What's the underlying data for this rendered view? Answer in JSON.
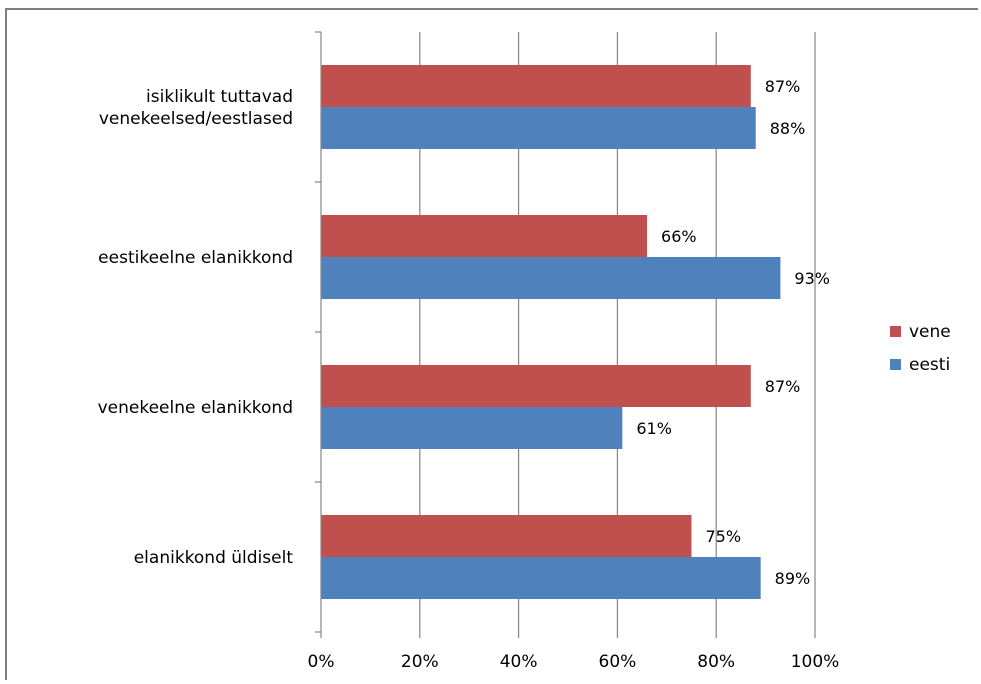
{
  "chart_data": {
    "type": "bar",
    "orientation": "horizontal",
    "categories": [
      [
        "isiklikult tuttavad",
        "venekeelsed/eestlased"
      ],
      [
        "eestikeelne elanikkond"
      ],
      [
        "venekeelne elanikkond"
      ],
      [
        "elanikkond üldiselt"
      ]
    ],
    "series": [
      {
        "name": "vene",
        "color": "#c0504d",
        "values": [
          87,
          66,
          87,
          75
        ]
      },
      {
        "name": "eesti",
        "color": "#4f81bd",
        "values": [
          88,
          93,
          61,
          89
        ]
      }
    ],
    "data_labels": {
      "vene": [
        "87%",
        "66%",
        "87%",
        "75%"
      ],
      "eesti": [
        "88%",
        "93%",
        "61%",
        "89%"
      ]
    },
    "x_ticks": [
      "0%",
      "20%",
      "40%",
      "60%",
      "80%",
      "100%"
    ],
    "xlim": [
      0,
      100
    ],
    "grid": true,
    "legend_position": "right",
    "title": "",
    "xlabel": "",
    "ylabel": ""
  }
}
